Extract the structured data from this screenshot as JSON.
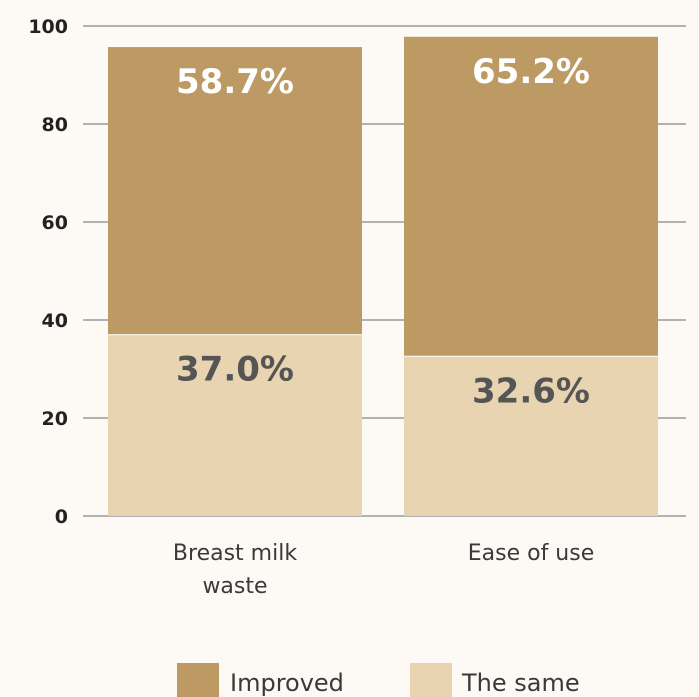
{
  "chart_data": {
    "type": "bar",
    "stacked": true,
    "categories": [
      "Breast milk waste",
      "Ease of use"
    ],
    "category_lines": [
      [
        "Breast milk",
        "waste"
      ],
      [
        "Ease of use"
      ]
    ],
    "series": [
      {
        "name": "The same",
        "values": [
          37.0,
          32.6
        ],
        "labels": [
          "37.0%",
          "32.6%"
        ],
        "color": "#e8d4b0",
        "label_color": "#555555"
      },
      {
        "name": "Improved",
        "values": [
          58.7,
          65.2
        ],
        "labels": [
          "58.7%",
          "65.2%"
        ],
        "color": "#bd9a63",
        "label_color": "#ffffff"
      }
    ],
    "ylim": [
      0,
      100
    ],
    "yticks": [
      "0",
      "20",
      "40",
      "60",
      "80",
      "100"
    ],
    "grid": true,
    "legend_position": "bottom-center",
    "title": "",
    "xlabel": "",
    "ylabel": ""
  },
  "legend": [
    {
      "label": "Improved",
      "color": "#bd9a63"
    },
    {
      "label": "The same",
      "color": "#e8d4b0"
    }
  ],
  "colors": {
    "background": "#fdfaf6",
    "axis": "#6b6b6b",
    "grid": "#6b6b6b"
  }
}
